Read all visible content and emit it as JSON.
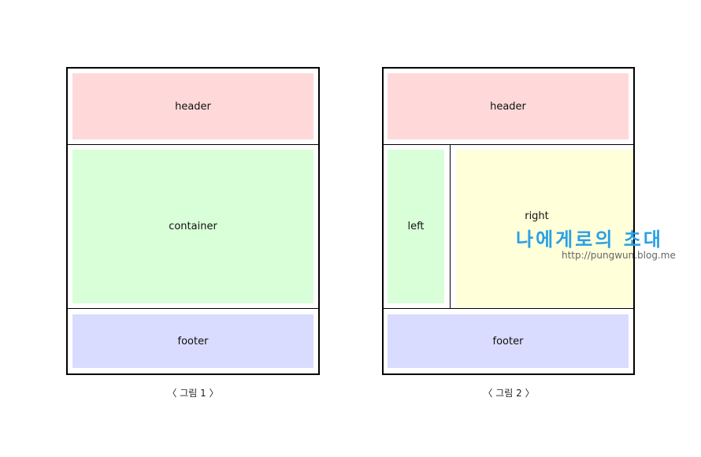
{
  "figures": [
    {
      "header": "header",
      "container": "container",
      "footer": "footer",
      "caption": "〈 그림 1 〉"
    },
    {
      "header": "header",
      "left": "left",
      "right": "right",
      "footer": "footer",
      "caption": "〈 그림 2 〉"
    }
  ],
  "watermark": {
    "title": "나에게로의 초대",
    "url": "http://pungwun.blog.me"
  }
}
